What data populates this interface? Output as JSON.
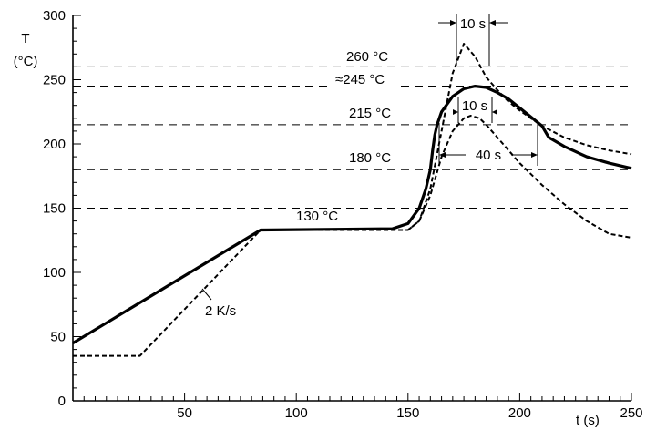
{
  "chart_data": {
    "type": "line",
    "xlabel": "t (s)",
    "ylabel": "T",
    "ylabel_unit": "(°C)",
    "xlim": [
      0,
      250
    ],
    "ylim": [
      0,
      300
    ],
    "xticks": [
      50,
      100,
      150,
      200,
      250
    ],
    "yticks": [
      0,
      50,
      100,
      150,
      200,
      250,
      300
    ],
    "grid": false,
    "reference_lines": [
      {
        "y": 260,
        "label": "260 °C"
      },
      {
        "y": 245,
        "label": "≈245 °C"
      },
      {
        "y": 215,
        "label": "215 °C"
      },
      {
        "y": 180,
        "label": "180 °C"
      },
      {
        "y": 150,
        "label": ""
      }
    ],
    "series": [
      {
        "style": "solid",
        "x": [
          0,
          84,
          143,
          150,
          155,
          158,
          160,
          161,
          162,
          163,
          165,
          170,
          175,
          180,
          185,
          190,
          195,
          200,
          205,
          210,
          213,
          220,
          230,
          240,
          250
        ],
        "y": [
          45,
          133,
          134,
          138,
          150,
          165,
          180,
          195,
          207,
          215,
          225,
          237,
          243,
          245,
          244,
          240,
          235,
          228,
          221,
          214,
          205,
          198,
          190,
          185,
          181
        ]
      },
      {
        "style": "dashed",
        "x": [
          0,
          30,
          84,
          150,
          155,
          160,
          165,
          170,
          175,
          180,
          185,
          190,
          195,
          200,
          210,
          220,
          230,
          240,
          250
        ],
        "y": [
          35,
          35,
          133,
          133,
          140,
          165,
          210,
          255,
          278,
          268,
          252,
          242,
          233,
          226,
          214,
          205,
          199,
          195,
          192
        ]
      },
      {
        "style": "dashed",
        "x": [
          150,
          155,
          160,
          165,
          170,
          175,
          178,
          182,
          185,
          190,
          200,
          210,
          220,
          230,
          240,
          250
        ],
        "y": [
          133,
          140,
          160,
          190,
          210,
          220,
          222,
          220,
          215,
          205,
          185,
          168,
          153,
          140,
          130,
          127
        ]
      }
    ],
    "annotations": {
      "ramp_label": "2 K/s",
      "plateau_label": "130 °C",
      "top_width_label": "10 s",
      "mid_width_label": "10 s",
      "liquidus_width_label": "40 s"
    }
  }
}
